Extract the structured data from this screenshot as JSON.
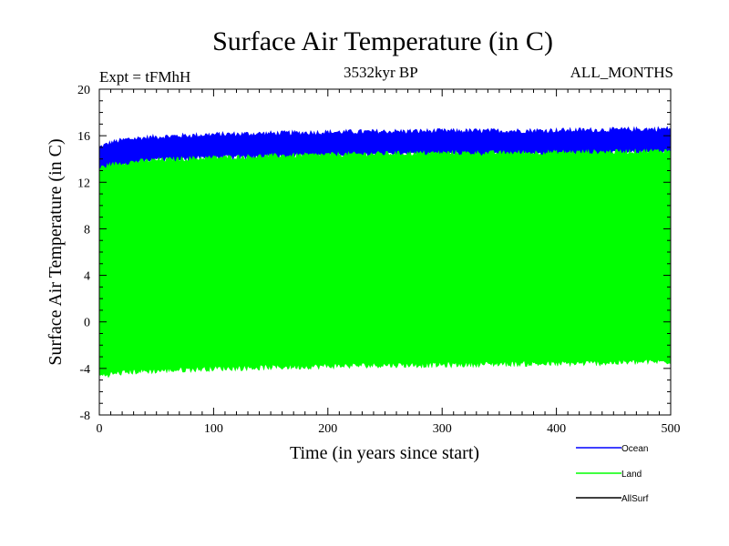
{
  "chart_data": {
    "type": "area",
    "title": "Surface Air Temperature (in C)",
    "subtitle_left": "Expt = tFMhH",
    "subtitle_center": "3532kyr BP",
    "subtitle_right": "ALL_MONTHS",
    "xlabel": "Time (in years since start)",
    "ylabel": "Surface Air Temperature (in C)",
    "xlim": [
      0,
      500
    ],
    "ylim": [
      -8,
      20
    ],
    "x_ticks": [
      0,
      100,
      200,
      300,
      400,
      500
    ],
    "x_tick_labels": [
      "0",
      "100",
      "200",
      "300",
      "400",
      "500"
    ],
    "y_ticks": [
      -8,
      -4,
      0,
      4,
      8,
      12,
      16,
      20
    ],
    "y_tick_labels": [
      "-8",
      "-4",
      "0",
      "4",
      "8",
      "12",
      "16",
      "20"
    ],
    "grid": false,
    "legend_position": "bottom-right",
    "series": [
      {
        "name": "Ocean",
        "color": "#0000ff",
        "x": [
          0,
          10,
          25,
          50,
          75,
          100,
          150,
          200,
          250,
          300,
          350,
          400,
          450,
          500
        ],
        "upper": [
          15.0,
          15.4,
          15.7,
          15.9,
          16.0,
          16.1,
          16.2,
          16.3,
          16.35,
          16.4,
          16.4,
          16.45,
          16.5,
          16.6
        ],
        "lower": [
          12.5,
          13.2,
          13.6,
          13.9,
          14.0,
          14.1,
          14.2,
          14.3,
          14.35,
          14.4,
          14.4,
          14.45,
          14.5,
          14.6
        ]
      },
      {
        "name": "Land",
        "color": "#00ff00",
        "x": [
          0,
          10,
          25,
          50,
          75,
          100,
          150,
          200,
          250,
          300,
          350,
          400,
          450,
          500
        ],
        "upper": [
          13.2,
          13.5,
          13.7,
          13.9,
          14.0,
          14.1,
          14.25,
          14.35,
          14.45,
          14.5,
          14.5,
          14.55,
          14.6,
          14.7
        ],
        "lower": [
          -4.6,
          -4.5,
          -4.3,
          -4.2,
          -4.1,
          -4.0,
          -3.9,
          -3.8,
          -3.7,
          -3.7,
          -3.6,
          -3.6,
          -3.5,
          -3.4
        ]
      },
      {
        "name": "AllSurf",
        "color": "#000000",
        "x": [],
        "upper": [],
        "lower": []
      }
    ]
  }
}
